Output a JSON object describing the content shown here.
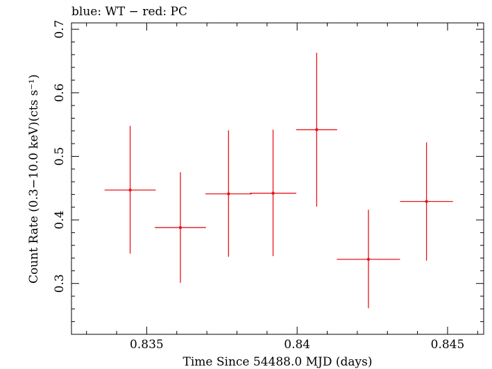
{
  "chart_data": {
    "type": "scatter",
    "title": "blue: WT − red: PC",
    "xlabel": "Time Since 54488.0 MJD (days)",
    "ylabel": "Count Rate (0.3−10.0 keV)(cts s⁻¹)",
    "xlim": [
      0.8325,
      0.8462
    ],
    "ylim": [
      0.22,
      0.71
    ],
    "x_ticks": [
      {
        "value": 0.835,
        "label": "0.835"
      },
      {
        "value": 0.84,
        "label": "0.84"
      },
      {
        "value": 0.845,
        "label": "0.845"
      }
    ],
    "y_ticks": [
      {
        "value": 0.3,
        "label": "0.3"
      },
      {
        "value": 0.4,
        "label": "0.4"
      },
      {
        "value": 0.5,
        "label": "0.5"
      },
      {
        "value": 0.6,
        "label": "0.6"
      },
      {
        "value": 0.7,
        "label": "0.7"
      }
    ],
    "grid": false,
    "series": [
      {
        "color": "#e8141a",
        "points": [
          {
            "x": 0.83445,
            "y": 0.447,
            "xerr": 0.00085,
            "yerr_low": 0.1,
            "yerr_high": 0.101
          },
          {
            "x": 0.83612,
            "y": 0.388,
            "xerr": 0.00085,
            "yerr_low": 0.087,
            "yerr_high": 0.087
          },
          {
            "x": 0.83772,
            "y": 0.441,
            "xerr": 0.00077,
            "yerr_low": 0.099,
            "yerr_high": 0.1
          },
          {
            "x": 0.8392,
            "y": 0.442,
            "xerr": 0.00077,
            "yerr_low": 0.099,
            "yerr_high": 0.1
          },
          {
            "x": 0.84065,
            "y": 0.542,
            "xerr": 0.00068,
            "yerr_low": 0.121,
            "yerr_high": 0.121
          },
          {
            "x": 0.84237,
            "y": 0.338,
            "xerr": 0.00105,
            "yerr_low": 0.077,
            "yerr_high": 0.078
          },
          {
            "x": 0.8443,
            "y": 0.429,
            "xerr": 0.00088,
            "yerr_low": 0.093,
            "yerr_high": 0.093
          }
        ]
      }
    ]
  }
}
